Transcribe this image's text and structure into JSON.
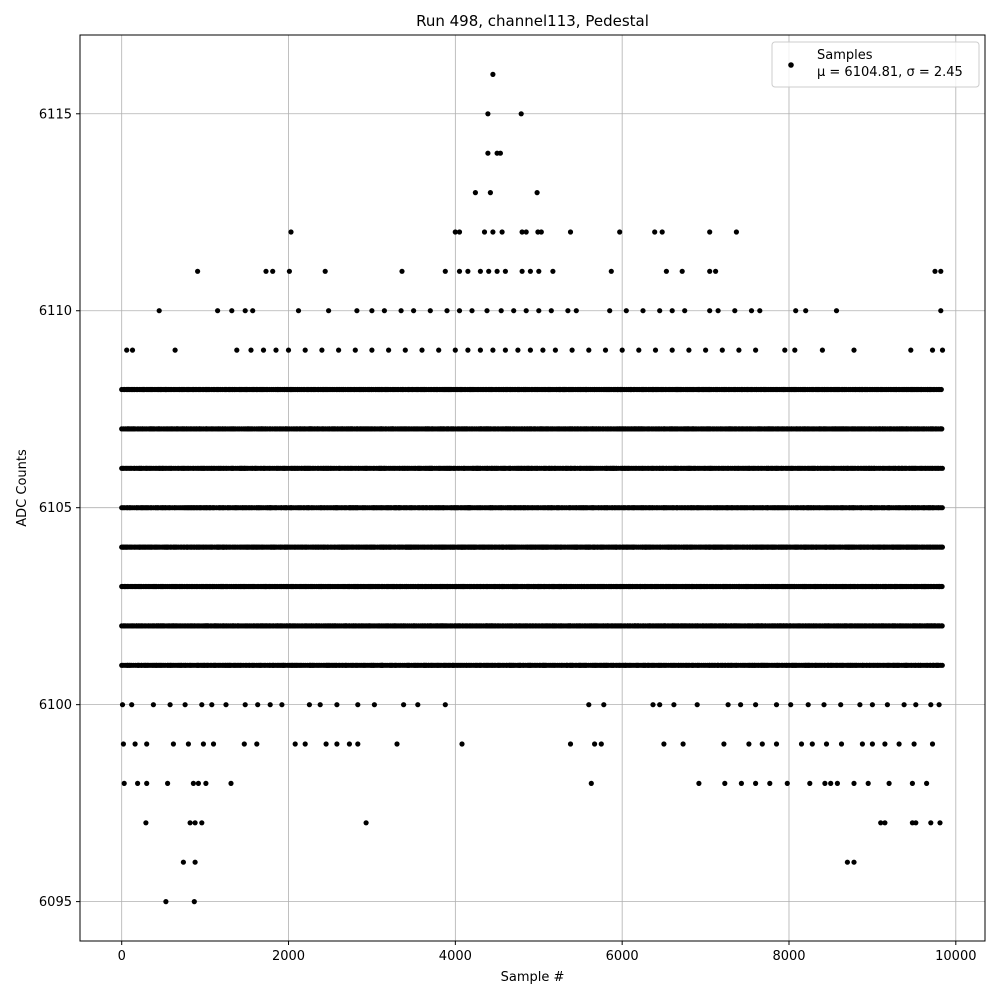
{
  "chart_data": {
    "type": "scatter",
    "title": "Run 498, channel113, Pedestal",
    "xlabel": "Sample #",
    "ylabel": "ADC Counts",
    "xlim": [
      -500,
      10350
    ],
    "ylim": [
      6094,
      6117
    ],
    "xticks": [
      0,
      2000,
      4000,
      6000,
      8000,
      10000
    ],
    "yticks": [
      6095,
      6100,
      6105,
      6110,
      6115
    ],
    "xtick_labels": [
      "0",
      "2000",
      "4000",
      "6000",
      "8000",
      "10000"
    ],
    "ytick_labels": [
      "6095",
      "6100",
      "6105",
      "6110",
      "6115"
    ],
    "grid": true,
    "legend_position": "top-right",
    "series": [
      {
        "name": "Samples",
        "color": "#000000",
        "marker": "circle",
        "stats_label": "μ = 6104.81, σ = 2.45",
        "dense_levels": [
          6101,
          6102,
          6103,
          6104,
          6105,
          6106,
          6107,
          6108
        ],
        "x_range": [
          0,
          9840
        ],
        "points": [
          [
            530,
            6095
          ],
          [
            870,
            6095
          ],
          [
            740,
            6096
          ],
          [
            880,
            6096
          ],
          [
            8700,
            6096
          ],
          [
            8780,
            6096
          ],
          [
            290,
            6097
          ],
          [
            820,
            6097
          ],
          [
            880,
            6097
          ],
          [
            960,
            6097
          ],
          [
            2930,
            6097
          ],
          [
            9100,
            6097
          ],
          [
            9150,
            6097
          ],
          [
            9480,
            6097
          ],
          [
            9520,
            6097
          ],
          [
            9700,
            6097
          ],
          [
            9810,
            6097
          ],
          [
            30,
            6098
          ],
          [
            190,
            6098
          ],
          [
            300,
            6098
          ],
          [
            550,
            6098
          ],
          [
            860,
            6098
          ],
          [
            920,
            6098
          ],
          [
            1010,
            6098
          ],
          [
            1310,
            6098
          ],
          [
            5630,
            6098
          ],
          [
            6920,
            6098
          ],
          [
            7230,
            6098
          ],
          [
            7430,
            6098
          ],
          [
            7600,
            6098
          ],
          [
            7770,
            6098
          ],
          [
            7980,
            6098
          ],
          [
            8250,
            6098
          ],
          [
            8430,
            6098
          ],
          [
            8500,
            6098
          ],
          [
            8580,
            6098
          ],
          [
            8780,
            6098
          ],
          [
            8950,
            6098
          ],
          [
            9200,
            6098
          ],
          [
            9480,
            6098
          ],
          [
            9650,
            6098
          ],
          [
            20,
            6099
          ],
          [
            160,
            6099
          ],
          [
            300,
            6099
          ],
          [
            620,
            6099
          ],
          [
            800,
            6099
          ],
          [
            980,
            6099
          ],
          [
            1100,
            6099
          ],
          [
            1470,
            6099
          ],
          [
            1620,
            6099
          ],
          [
            2080,
            6099
          ],
          [
            2200,
            6099
          ],
          [
            2450,
            6099
          ],
          [
            2580,
            6099
          ],
          [
            2730,
            6099
          ],
          [
            2830,
            6099
          ],
          [
            3300,
            6099
          ],
          [
            4080,
            6099
          ],
          [
            5380,
            6099
          ],
          [
            5670,
            6099
          ],
          [
            5750,
            6099
          ],
          [
            6500,
            6099
          ],
          [
            6730,
            6099
          ],
          [
            7220,
            6099
          ],
          [
            7520,
            6099
          ],
          [
            7680,
            6099
          ],
          [
            7850,
            6099
          ],
          [
            8150,
            6099
          ],
          [
            8280,
            6099
          ],
          [
            8450,
            6099
          ],
          [
            8630,
            6099
          ],
          [
            8880,
            6099
          ],
          [
            9000,
            6099
          ],
          [
            9150,
            6099
          ],
          [
            9320,
            6099
          ],
          [
            9500,
            6099
          ],
          [
            9720,
            6099
          ],
          [
            10,
            6100
          ],
          [
            120,
            6100
          ],
          [
            380,
            6100
          ],
          [
            580,
            6100
          ],
          [
            760,
            6100
          ],
          [
            960,
            6100
          ],
          [
            1080,
            6100
          ],
          [
            1250,
            6100
          ],
          [
            1480,
            6100
          ],
          [
            1630,
            6100
          ],
          [
            1780,
            6100
          ],
          [
            1920,
            6100
          ],
          [
            2250,
            6100
          ],
          [
            2380,
            6100
          ],
          [
            2580,
            6100
          ],
          [
            2830,
            6100
          ],
          [
            3030,
            6100
          ],
          [
            3380,
            6100
          ],
          [
            3550,
            6100
          ],
          [
            3880,
            6100
          ],
          [
            5600,
            6100
          ],
          [
            5780,
            6100
          ],
          [
            6370,
            6100
          ],
          [
            6450,
            6100
          ],
          [
            6620,
            6100
          ],
          [
            6900,
            6100
          ],
          [
            7270,
            6100
          ],
          [
            7420,
            6100
          ],
          [
            7600,
            6100
          ],
          [
            7850,
            6100
          ],
          [
            8020,
            6100
          ],
          [
            8230,
            6100
          ],
          [
            8420,
            6100
          ],
          [
            8620,
            6100
          ],
          [
            8850,
            6100
          ],
          [
            9000,
            6100
          ],
          [
            9180,
            6100
          ],
          [
            9380,
            6100
          ],
          [
            9520,
            6100
          ],
          [
            9700,
            6100
          ],
          [
            9800,
            6100
          ],
          [
            60,
            6109
          ],
          [
            130,
            6109
          ],
          [
            640,
            6109
          ],
          [
            1380,
            6109
          ],
          [
            1550,
            6109
          ],
          [
            1700,
            6109
          ],
          [
            1850,
            6109
          ],
          [
            2000,
            6109
          ],
          [
            2200,
            6109
          ],
          [
            2400,
            6109
          ],
          [
            2600,
            6109
          ],
          [
            2800,
            6109
          ],
          [
            3000,
            6109
          ],
          [
            3200,
            6109
          ],
          [
            3400,
            6109
          ],
          [
            3600,
            6109
          ],
          [
            3800,
            6109
          ],
          [
            4000,
            6109
          ],
          [
            4150,
            6109
          ],
          [
            4300,
            6109
          ],
          [
            4450,
            6109
          ],
          [
            4600,
            6109
          ],
          [
            4750,
            6109
          ],
          [
            4900,
            6109
          ],
          [
            5050,
            6109
          ],
          [
            5200,
            6109
          ],
          [
            5400,
            6109
          ],
          [
            5600,
            6109
          ],
          [
            5800,
            6109
          ],
          [
            6000,
            6109
          ],
          [
            6200,
            6109
          ],
          [
            6400,
            6109
          ],
          [
            6600,
            6109
          ],
          [
            6800,
            6109
          ],
          [
            7000,
            6109
          ],
          [
            7200,
            6109
          ],
          [
            7400,
            6109
          ],
          [
            7600,
            6109
          ],
          [
            7950,
            6109
          ],
          [
            8070,
            6109
          ],
          [
            8400,
            6109
          ],
          [
            8780,
            6109
          ],
          [
            9460,
            6109
          ],
          [
            9720,
            6109
          ],
          [
            9840,
            6109
          ],
          [
            450,
            6110
          ],
          [
            1150,
            6110
          ],
          [
            1320,
            6110
          ],
          [
            1480,
            6110
          ],
          [
            1570,
            6110
          ],
          [
            2120,
            6110
          ],
          [
            2480,
            6110
          ],
          [
            2820,
            6110
          ],
          [
            3000,
            6110
          ],
          [
            3150,
            6110
          ],
          [
            3350,
            6110
          ],
          [
            3500,
            6110
          ],
          [
            3700,
            6110
          ],
          [
            3900,
            6110
          ],
          [
            4050,
            6110
          ],
          [
            4200,
            6110
          ],
          [
            4380,
            6110
          ],
          [
            4550,
            6110
          ],
          [
            4700,
            6110
          ],
          [
            4850,
            6110
          ],
          [
            5000,
            6110
          ],
          [
            5150,
            6110
          ],
          [
            5350,
            6110
          ],
          [
            5450,
            6110
          ],
          [
            5850,
            6110
          ],
          [
            6050,
            6110
          ],
          [
            6250,
            6110
          ],
          [
            6450,
            6110
          ],
          [
            6600,
            6110
          ],
          [
            6750,
            6110
          ],
          [
            7050,
            6110
          ],
          [
            7150,
            6110
          ],
          [
            7350,
            6110
          ],
          [
            7550,
            6110
          ],
          [
            7650,
            6110
          ],
          [
            8080,
            6110
          ],
          [
            8200,
            6110
          ],
          [
            8570,
            6110
          ],
          [
            9820,
            6110
          ],
          [
            910,
            6111
          ],
          [
            1730,
            6111
          ],
          [
            1810,
            6111
          ],
          [
            2010,
            6111
          ],
          [
            2440,
            6111
          ],
          [
            3360,
            6111
          ],
          [
            3880,
            6111
          ],
          [
            4050,
            6111
          ],
          [
            4150,
            6111
          ],
          [
            4300,
            6111
          ],
          [
            4400,
            6111
          ],
          [
            4500,
            6111
          ],
          [
            4600,
            6111
          ],
          [
            4800,
            6111
          ],
          [
            4900,
            6111
          ],
          [
            5000,
            6111
          ],
          [
            5170,
            6111
          ],
          [
            5870,
            6111
          ],
          [
            6530,
            6111
          ],
          [
            6720,
            6111
          ],
          [
            7050,
            6111
          ],
          [
            7120,
            6111
          ],
          [
            9750,
            6111
          ],
          [
            9820,
            6111
          ],
          [
            2030,
            6112
          ],
          [
            4000,
            6112
          ],
          [
            4050,
            6112
          ],
          [
            4350,
            6112
          ],
          [
            4450,
            6112
          ],
          [
            4560,
            6112
          ],
          [
            4800,
            6112
          ],
          [
            4850,
            6112
          ],
          [
            4990,
            6112
          ],
          [
            5030,
            6112
          ],
          [
            5380,
            6112
          ],
          [
            5970,
            6112
          ],
          [
            6390,
            6112
          ],
          [
            6480,
            6112
          ],
          [
            7050,
            6112
          ],
          [
            7370,
            6112
          ],
          [
            4240,
            6113
          ],
          [
            4420,
            6113
          ],
          [
            4980,
            6113
          ],
          [
            4390,
            6114
          ],
          [
            4500,
            6114
          ],
          [
            4540,
            6114
          ],
          [
            4390,
            6115
          ],
          [
            4790,
            6115
          ],
          [
            4450,
            6116
          ]
        ]
      }
    ]
  }
}
